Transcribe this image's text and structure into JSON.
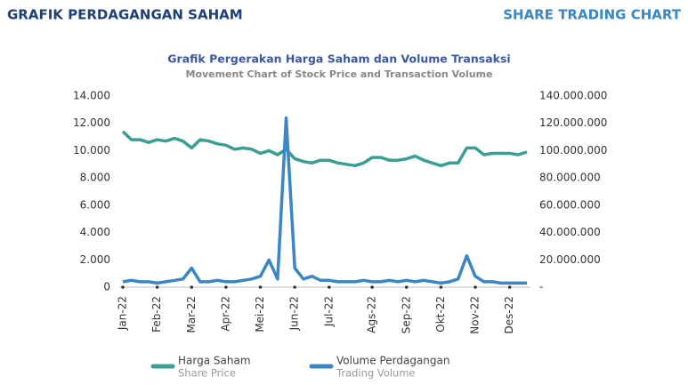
{
  "header": {
    "title": "GRAFIK PERDAGANGAN SAHAM",
    "title_en": "SHARE TRADING CHART"
  },
  "chart_data": {
    "type": "line",
    "title": "Grafik Pergerakan Harga Saham dan Volume Transaksi",
    "subtitle": "Movement Chart of Stock Price and Transaction Volume",
    "categories": [
      "Jan-22",
      null,
      null,
      null,
      "Feb-22",
      null,
      null,
      null,
      "Mar-22",
      null,
      null,
      null,
      "Apr-22",
      null,
      null,
      null,
      "Mei-22",
      null,
      null,
      null,
      "Jun-22",
      null,
      null,
      null,
      "Jul-22",
      null,
      null,
      null,
      null,
      "Ags-22",
      null,
      null,
      null,
      "Sep-22",
      null,
      null,
      null,
      "Okt-22",
      null,
      null,
      null,
      "Nov-22",
      null,
      null,
      null,
      "Des-22",
      null,
      null
    ],
    "series": [
      {
        "name": "Harga Saham",
        "name_en": "Share Price",
        "color": "#3a9e94",
        "axis": "y",
        "values": [
          11400,
          10800,
          10800,
          10600,
          10800,
          10700,
          10900,
          10700,
          10200,
          10800,
          10700,
          10500,
          10400,
          10100,
          10200,
          10100,
          9800,
          10000,
          9700,
          10100,
          9400,
          9200,
          9100,
          9300,
          9300,
          9100,
          9000,
          8900,
          9100,
          9500,
          9500,
          9300,
          9300,
          9400,
          9600,
          9300,
          9100,
          8900,
          9100,
          9100,
          10200,
          10200,
          9700,
          9800,
          9800,
          9800,
          9700,
          9900
        ]
      },
      {
        "name": "Volume Perdagangan",
        "name_en": "Trading Volume",
        "color": "#3b86c6",
        "axis": "y2",
        "values": [
          4000000,
          5000000,
          4000000,
          4000000,
          3000000,
          4000000,
          5000000,
          6000000,
          14000000,
          4000000,
          4000000,
          5000000,
          4000000,
          4000000,
          5000000,
          6000000,
          8000000,
          20000000,
          6000000,
          124000000,
          14000000,
          6000000,
          8000000,
          5000000,
          5000000,
          4000000,
          4000000,
          4000000,
          5000000,
          4000000,
          4000000,
          5000000,
          4000000,
          5000000,
          4000000,
          5000000,
          4000000,
          3000000,
          4000000,
          6000000,
          23000000,
          8000000,
          4000000,
          4000000,
          3000000,
          3000000,
          3000000,
          3000000
        ]
      }
    ],
    "ylim": [
      0,
      14000
    ],
    "yticks": [
      0,
      {
        "value": 2000,
        "label": "2.000"
      },
      {
        "value": 4000,
        "label": "4.000"
      },
      {
        "value": 6000,
        "label": "6.000"
      },
      {
        "value": 8000,
        "label": "8.000"
      },
      {
        "value": 10000,
        "label": "10.000"
      },
      {
        "value": 12000,
        "label": "12.000"
      },
      {
        "value": 14000,
        "label": "14.000"
      }
    ],
    "y2lim": [
      0,
      140000000
    ],
    "y2ticks": [
      {
        "value": 0,
        "label": "-"
      },
      {
        "value": 20000000,
        "label": "20.000.000"
      },
      {
        "value": 40000000,
        "label": "40.000.000"
      },
      {
        "value": 60000000,
        "label": "60.000.000"
      },
      {
        "value": 80000000,
        "label": "80.000.000"
      },
      {
        "value": 100000000,
        "label": "100.000.000"
      },
      {
        "value": 120000000,
        "label": "120.000.000"
      },
      {
        "value": 140000000,
        "label": "140.000.000"
      }
    ],
    "legend": "bottom"
  }
}
